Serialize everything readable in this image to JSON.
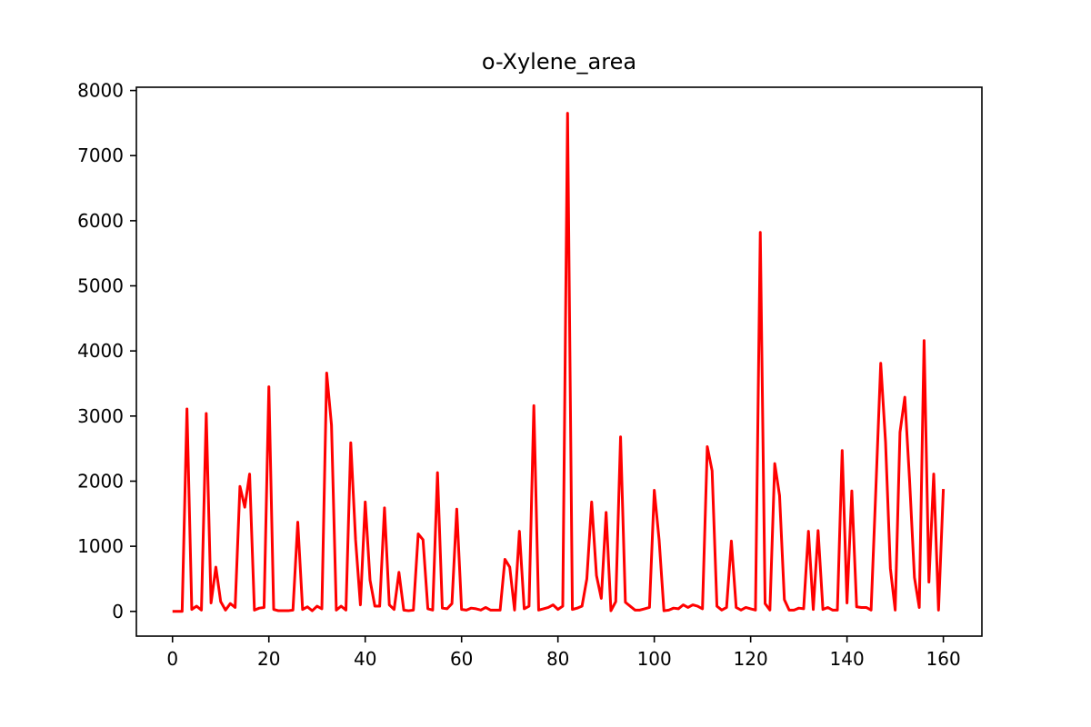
{
  "chart_data": {
    "type": "line",
    "title": "o-Xylene_area",
    "xlabel": "",
    "ylabel": "",
    "xlim": [
      -7.5,
      168
    ],
    "ylim": [
      -380,
      8050
    ],
    "xticks": [
      0,
      20,
      40,
      60,
      80,
      100,
      120,
      140,
      160
    ],
    "yticks": [
      0,
      1000,
      2000,
      3000,
      4000,
      5000,
      6000,
      7000,
      8000
    ],
    "grid": false,
    "legend": "none",
    "series": [
      {
        "color": "#ff0000",
        "x": [
          0,
          1,
          2,
          3,
          4,
          5,
          6,
          7,
          8,
          9,
          10,
          11,
          12,
          13,
          14,
          15,
          16,
          17,
          18,
          19,
          20,
          21,
          22,
          23,
          24,
          25,
          26,
          27,
          28,
          29,
          30,
          31,
          32,
          33,
          34,
          35,
          36,
          37,
          38,
          39,
          40,
          41,
          42,
          43,
          44,
          45,
          46,
          47,
          48,
          49,
          50,
          51,
          52,
          53,
          54,
          55,
          56,
          57,
          58,
          59,
          60,
          61,
          62,
          63,
          64,
          65,
          66,
          67,
          68,
          69,
          70,
          71,
          72,
          73,
          74,
          75,
          76,
          77,
          78,
          79,
          80,
          81,
          82,
          83,
          84,
          85,
          86,
          87,
          88,
          89,
          90,
          91,
          92,
          93,
          94,
          95,
          96,
          97,
          98,
          99,
          100,
          101,
          102,
          103,
          104,
          105,
          106,
          107,
          108,
          109,
          110,
          111,
          112,
          113,
          114,
          115,
          116,
          117,
          118,
          119,
          120,
          121,
          122,
          123,
          124,
          125,
          126,
          127,
          128,
          129,
          130,
          131,
          132,
          133,
          134,
          135,
          136,
          137,
          138,
          139,
          140,
          141,
          142,
          143,
          144,
          145,
          146,
          147,
          148,
          149,
          150,
          151,
          152,
          153,
          154,
          155,
          156,
          157,
          158,
          159,
          160
        ],
        "y": [
          0,
          0,
          0,
          3110,
          30,
          80,
          20,
          3040,
          130,
          680,
          150,
          20,
          120,
          60,
          1920,
          1600,
          2110,
          20,
          50,
          60,
          3450,
          30,
          10,
          10,
          10,
          20,
          1370,
          30,
          70,
          10,
          80,
          40,
          3660,
          2860,
          20,
          80,
          20,
          2590,
          1100,
          100,
          1680,
          480,
          80,
          80,
          1590,
          100,
          30,
          600,
          20,
          10,
          20,
          1190,
          1100,
          40,
          20,
          2130,
          50,
          40,
          120,
          1570,
          30,
          20,
          50,
          40,
          20,
          60,
          20,
          20,
          20,
          800,
          680,
          20,
          1230,
          40,
          80,
          3160,
          20,
          40,
          60,
          100,
          30,
          80,
          7650,
          30,
          50,
          80,
          500,
          1680,
          550,
          200,
          1520,
          10,
          150,
          2680,
          140,
          80,
          20,
          20,
          40,
          60,
          1860,
          1100,
          10,
          20,
          50,
          40,
          100,
          60,
          100,
          80,
          40,
          2530,
          2160,
          80,
          20,
          60,
          1080,
          60,
          20,
          60,
          40,
          20,
          5820,
          120,
          20,
          2270,
          1780,
          180,
          20,
          20,
          50,
          40,
          1230,
          30,
          1240,
          30,
          60,
          20,
          20,
          2470,
          130,
          1850,
          70,
          60,
          60,
          20,
          1900,
          3810,
          2600,
          660,
          20,
          2750,
          3290,
          2000,
          520,
          60,
          4160,
          450,
          2110,
          20,
          1880
        ]
      }
    ]
  }
}
